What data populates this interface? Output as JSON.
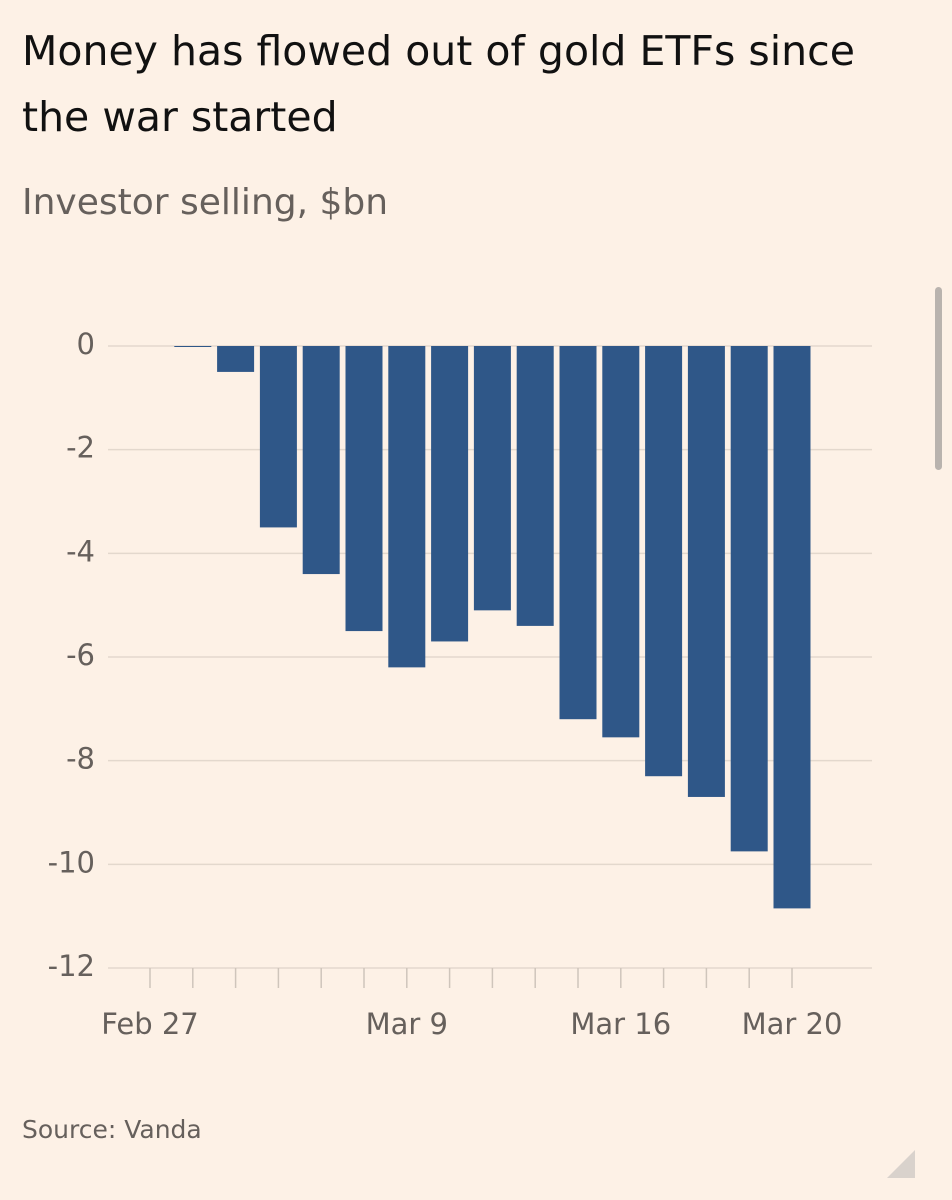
{
  "chart_data": {
    "type": "bar",
    "title": "Money has flowed out of gold ETFs since the war started",
    "subtitle": "Investor selling, $bn",
    "source": "Source: Vanda",
    "categories": [
      "Feb 27",
      null,
      null,
      null,
      null,
      null,
      "Mar 9",
      null,
      null,
      null,
      null,
      "Mar 16",
      null,
      null,
      null,
      "Mar 20"
    ],
    "values": [
      null,
      0,
      -0.5,
      -3.5,
      -4.4,
      -5.5,
      -6.2,
      -5.7,
      -5.1,
      -5.4,
      -7.2,
      -7.55,
      -8.3,
      -8.7,
      -9.75,
      -10.85
    ],
    "color": "#2f5788",
    "ylim": [
      -12,
      0
    ],
    "yticks": [
      0,
      -2,
      -4,
      -6,
      -8,
      -10,
      -12
    ],
    "grid": true
  }
}
